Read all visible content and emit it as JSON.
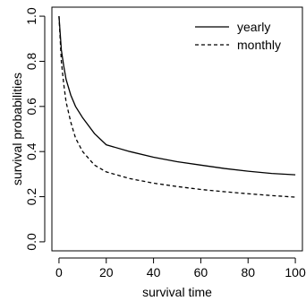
{
  "chart_data": {
    "type": "line",
    "xlabel": "survival time",
    "ylabel": "survival probabilities",
    "xlim": [
      -3,
      103
    ],
    "ylim": [
      -0.04,
      1.04
    ],
    "x_ticks": [
      0,
      20,
      40,
      60,
      80,
      100
    ],
    "y_ticks": [
      0.0,
      0.2,
      0.4,
      0.6,
      0.8,
      1.0
    ],
    "x_tick_labels": [
      "0",
      "20",
      "40",
      "60",
      "80",
      "100"
    ],
    "y_tick_labels": [
      "0.0",
      "0.2",
      "0.4",
      "0.6",
      "0.8",
      "1.0"
    ],
    "legend_position": "top-right",
    "series": [
      {
        "name": "yearly",
        "dash": "solid",
        "x": [
          0,
          1,
          2,
          3,
          5,
          7,
          10,
          15,
          20,
          30,
          40,
          50,
          60,
          70,
          80,
          90,
          100
        ],
        "y": [
          1.0,
          0.85,
          0.78,
          0.72,
          0.65,
          0.6,
          0.55,
          0.48,
          0.43,
          0.4,
          0.375,
          0.355,
          0.34,
          0.325,
          0.313,
          0.303,
          0.297
        ]
      },
      {
        "name": "monthly",
        "dash": "dashed",
        "x": [
          0,
          1,
          2,
          3,
          5,
          7,
          10,
          15,
          20,
          30,
          40,
          50,
          60,
          70,
          80,
          90,
          100
        ],
        "y": [
          1.0,
          0.8,
          0.7,
          0.62,
          0.53,
          0.46,
          0.4,
          0.34,
          0.31,
          0.28,
          0.26,
          0.245,
          0.232,
          0.222,
          0.213,
          0.205,
          0.198
        ]
      }
    ]
  }
}
